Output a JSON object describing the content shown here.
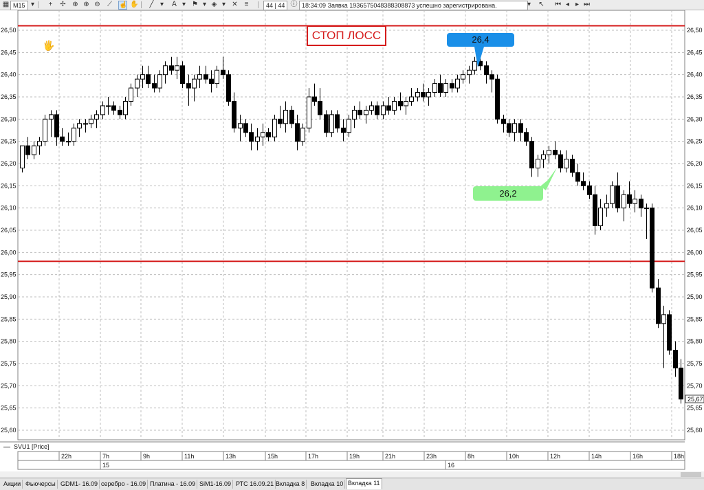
{
  "toolbar": {
    "timeframe": "M15",
    "counter": "44 | 44",
    "message_time": "18:34:09",
    "message_text": "Заявка 1936575048388308873 успешно зарегистрирована."
  },
  "annotations": {
    "stop_loss": "СТОП ЛОСС",
    "bubble_high": "26,4",
    "bubble_low": "26,2"
  },
  "colors": {
    "stop_line": "#d51b1b",
    "bubble_high": "#1a8fe8",
    "bubble_low": "#8ff28f"
  },
  "series_label": "SVU1 [Price]",
  "tabs": [
    "Акции",
    "Фьючерсы",
    "GDM1- 16.09",
    "серебро - 16.09",
    "Платина - 16.09",
    "SiM1-16.09",
    "РТС 16.09.21",
    "Вкладка 8",
    "Вкладка 10",
    "Вкладка 11"
  ],
  "active_tab": "Вкладка 11",
  "chart_data": {
    "type": "candlestick",
    "symbol": "SVU1",
    "timeframe": "M15",
    "ylim": [
      25.58,
      26.53
    ],
    "yticks": [
      "25,60",
      "25,65",
      "25,70",
      "25,75",
      "25,80",
      "25,85",
      "25,90",
      "25,95",
      "26,00",
      "26,05",
      "26,10",
      "26,15",
      "26,20",
      "26,25",
      "26,30",
      "26,35",
      "26,40",
      "26,45",
      "26,50"
    ],
    "last_price": "25,67",
    "x_time_labels": [
      "22h",
      "7h",
      "9h",
      "11h",
      "13h",
      "15h",
      "17h",
      "19h",
      "21h",
      "23h",
      "8h",
      "10h",
      "12h",
      "14h",
      "16h",
      "18h"
    ],
    "x_date_labels": [
      "15",
      "16"
    ],
    "horizontal_lines": [
      26.51,
      25.98
    ],
    "candles": [
      [
        26.19,
        26.24,
        26.18,
        26.24
      ],
      [
        26.24,
        26.26,
        26.21,
        26.22
      ],
      [
        26.22,
        26.25,
        26.21,
        26.24
      ],
      [
        26.24,
        26.26,
        26.22,
        26.25
      ],
      [
        26.25,
        26.31,
        26.24,
        26.3
      ],
      [
        26.3,
        26.32,
        26.26,
        26.31
      ],
      [
        26.31,
        26.32,
        26.24,
        26.26
      ],
      [
        26.26,
        26.28,
        26.24,
        26.25
      ],
      [
        26.25,
        26.27,
        26.24,
        26.25
      ],
      [
        26.25,
        26.29,
        26.24,
        26.28
      ],
      [
        26.28,
        26.3,
        26.26,
        26.29
      ],
      [
        26.29,
        26.3,
        26.27,
        26.29
      ],
      [
        26.29,
        26.31,
        26.28,
        26.3
      ],
      [
        26.3,
        26.32,
        26.28,
        26.31
      ],
      [
        26.31,
        26.34,
        26.3,
        26.33
      ],
      [
        26.33,
        26.35,
        26.31,
        26.33
      ],
      [
        26.33,
        26.34,
        26.31,
        26.32
      ],
      [
        26.32,
        26.33,
        26.3,
        26.31
      ],
      [
        26.31,
        26.35,
        26.3,
        26.34
      ],
      [
        26.34,
        26.38,
        26.33,
        26.37
      ],
      [
        26.37,
        26.4,
        26.35,
        26.39
      ],
      [
        26.39,
        26.42,
        26.37,
        26.4
      ],
      [
        26.4,
        26.42,
        26.37,
        26.38
      ],
      [
        26.38,
        26.4,
        26.36,
        26.37
      ],
      [
        26.37,
        26.41,
        26.36,
        26.4
      ],
      [
        26.4,
        26.43,
        26.38,
        26.42
      ],
      [
        26.42,
        26.44,
        26.4,
        26.41
      ],
      [
        26.41,
        26.44,
        26.39,
        26.42
      ],
      [
        26.42,
        26.43,
        26.37,
        26.38
      ],
      [
        26.38,
        26.4,
        26.33,
        26.37
      ],
      [
        26.37,
        26.4,
        26.34,
        26.39
      ],
      [
        26.39,
        26.42,
        26.37,
        26.4
      ],
      [
        26.4,
        26.42,
        26.38,
        26.39
      ],
      [
        26.39,
        26.41,
        26.36,
        26.38
      ],
      [
        26.38,
        26.42,
        26.37,
        26.41
      ],
      [
        26.41,
        26.44,
        26.39,
        26.4
      ],
      [
        26.4,
        26.41,
        26.33,
        26.34
      ],
      [
        26.34,
        26.36,
        26.27,
        26.28
      ],
      [
        26.28,
        26.31,
        26.25,
        26.29
      ],
      [
        26.29,
        26.3,
        26.26,
        26.27
      ],
      [
        26.27,
        26.29,
        26.23,
        26.25
      ],
      [
        26.25,
        26.28,
        26.23,
        26.26
      ],
      [
        26.26,
        26.29,
        26.24,
        26.27
      ],
      [
        26.27,
        26.28,
        26.25,
        26.26
      ],
      [
        26.26,
        26.31,
        26.25,
        26.3
      ],
      [
        26.3,
        26.33,
        26.28,
        26.29
      ],
      [
        26.29,
        26.34,
        26.27,
        26.32
      ],
      [
        26.32,
        26.33,
        26.28,
        26.29
      ],
      [
        26.29,
        26.31,
        26.23,
        26.25
      ],
      [
        26.25,
        26.29,
        26.24,
        26.28
      ],
      [
        26.28,
        26.37,
        26.27,
        26.35
      ],
      [
        26.35,
        26.38,
        26.33,
        26.34
      ],
      [
        26.34,
        26.37,
        26.3,
        26.31
      ],
      [
        26.31,
        26.32,
        26.26,
        26.27
      ],
      [
        26.27,
        26.32,
        26.26,
        26.31
      ],
      [
        26.31,
        26.32,
        26.27,
        26.28
      ],
      [
        26.28,
        26.3,
        26.25,
        26.27
      ],
      [
        26.27,
        26.31,
        26.26,
        26.3
      ],
      [
        26.3,
        26.33,
        26.28,
        26.32
      ],
      [
        26.32,
        26.34,
        26.3,
        26.31
      ],
      [
        26.31,
        26.33,
        26.29,
        26.32
      ],
      [
        26.32,
        26.34,
        26.31,
        26.33
      ],
      [
        26.33,
        26.34,
        26.3,
        26.31
      ],
      [
        26.31,
        26.34,
        26.3,
        26.33
      ],
      [
        26.33,
        26.35,
        26.31,
        26.32
      ],
      [
        26.32,
        26.35,
        26.31,
        26.34
      ],
      [
        26.34,
        26.36,
        26.32,
        26.33
      ],
      [
        26.33,
        26.35,
        26.31,
        26.34
      ],
      [
        26.34,
        26.37,
        26.33,
        26.35
      ],
      [
        26.35,
        26.37,
        26.34,
        26.36
      ],
      [
        26.36,
        26.38,
        26.34,
        26.35
      ],
      [
        26.35,
        26.37,
        26.33,
        26.36
      ],
      [
        26.36,
        26.39,
        26.35,
        26.38
      ],
      [
        26.38,
        26.4,
        26.35,
        26.36
      ],
      [
        26.36,
        26.39,
        26.35,
        26.38
      ],
      [
        26.38,
        26.39,
        26.36,
        26.37
      ],
      [
        26.37,
        26.4,
        26.36,
        26.39
      ],
      [
        26.39,
        26.41,
        26.38,
        26.4
      ],
      [
        26.4,
        26.42,
        26.38,
        26.41
      ],
      [
        26.41,
        26.44,
        26.4,
        26.43
      ],
      [
        26.43,
        26.45,
        26.41,
        26.42
      ],
      [
        26.42,
        26.43,
        26.38,
        26.4
      ],
      [
        26.4,
        26.41,
        26.36,
        26.39
      ],
      [
        26.39,
        26.4,
        26.29,
        26.3
      ],
      [
        26.3,
        26.31,
        26.27,
        26.29
      ],
      [
        26.29,
        26.3,
        26.26,
        26.27
      ],
      [
        26.27,
        26.3,
        26.25,
        26.29
      ],
      [
        26.29,
        26.3,
        26.25,
        26.27
      ],
      [
        26.27,
        26.28,
        26.24,
        26.25
      ],
      [
        26.25,
        26.26,
        26.17,
        26.19
      ],
      [
        26.19,
        26.22,
        26.17,
        26.21
      ],
      [
        26.21,
        26.23,
        26.19,
        26.22
      ],
      [
        26.22,
        26.24,
        26.2,
        26.23
      ],
      [
        26.23,
        26.25,
        26.21,
        26.22
      ],
      [
        26.22,
        26.23,
        26.18,
        26.19
      ],
      [
        26.19,
        26.23,
        26.18,
        26.21
      ],
      [
        26.21,
        26.22,
        26.17,
        26.18
      ],
      [
        26.18,
        26.2,
        26.15,
        26.16
      ],
      [
        26.16,
        26.18,
        26.14,
        26.15
      ],
      [
        26.15,
        26.16,
        26.12,
        26.13
      ],
      [
        26.13,
        26.15,
        26.04,
        26.06
      ],
      [
        26.06,
        26.12,
        26.05,
        26.1
      ],
      [
        26.1,
        26.13,
        26.08,
        26.11
      ],
      [
        26.11,
        26.16,
        26.1,
        26.15
      ],
      [
        26.15,
        26.18,
        26.09,
        26.1
      ],
      [
        26.1,
        26.14,
        26.07,
        26.13
      ],
      [
        26.13,
        26.16,
        26.1,
        26.11
      ],
      [
        26.11,
        26.14,
        26.09,
        26.12
      ],
      [
        26.12,
        26.13,
        26.08,
        26.1
      ],
      [
        26.1,
        26.11,
        26.03,
        26.1
      ],
      [
        26.1,
        26.11,
        25.91,
        25.92
      ],
      [
        25.92,
        25.94,
        25.83,
        25.84
      ],
      [
        25.84,
        25.88,
        25.74,
        25.86
      ],
      [
        25.86,
        25.87,
        25.77,
        25.78
      ],
      [
        25.78,
        25.8,
        25.72,
        25.74
      ],
      [
        25.74,
        25.76,
        25.66,
        25.67
      ]
    ]
  }
}
